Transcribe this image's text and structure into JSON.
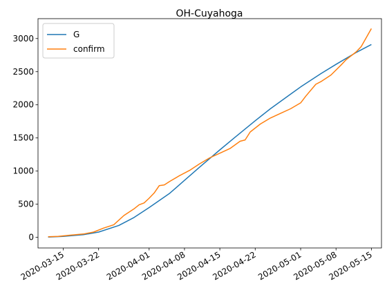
{
  "chart_data": {
    "type": "line",
    "title": "OH-Cuyahoga",
    "xlabel": "",
    "ylabel": "",
    "x_axis": "date",
    "xlim": [
      "2020-03-10",
      "2020-05-17"
    ],
    "ylim": [
      -160,
      3300
    ],
    "x_ticks": [
      "2020-03-15",
      "2020-03-22",
      "2020-04-01",
      "2020-04-08",
      "2020-04-15",
      "2020-04-22",
      "2020-05-01",
      "2020-05-08",
      "2020-05-15"
    ],
    "y_ticks": [
      0,
      500,
      1000,
      1500,
      2000,
      2500,
      3000
    ],
    "grid": false,
    "legend": {
      "placement": "top-left"
    },
    "series": [
      {
        "name": "G",
        "color": "#1f77b4",
        "x": [
          "2020-03-12",
          "2020-03-15",
          "2020-03-19",
          "2020-03-22",
          "2020-03-26",
          "2020-03-29",
          "2020-04-01",
          "2020-04-05",
          "2020-04-08",
          "2020-04-11",
          "2020-04-15",
          "2020-04-18",
          "2020-04-22",
          "2020-04-25",
          "2020-04-29",
          "2020-05-01",
          "2020-05-05",
          "2020-05-08",
          "2020-05-12",
          "2020-05-15"
        ],
        "y": [
          5,
          15,
          40,
          80,
          180,
          300,
          450,
          660,
          860,
          1060,
          1320,
          1510,
          1760,
          1940,
          2160,
          2270,
          2470,
          2610,
          2790,
          2910
        ]
      },
      {
        "name": "confirm",
        "color": "#ff7f0e",
        "x": [
          "2020-03-12",
          "2020-03-14",
          "2020-03-16",
          "2020-03-19",
          "2020-03-21",
          "2020-03-23",
          "2020-03-25",
          "2020-03-27",
          "2020-03-29",
          "2020-03-30",
          "2020-03-31",
          "2020-04-01",
          "2020-04-02",
          "2020-04-03",
          "2020-04-04",
          "2020-04-05",
          "2020-04-07",
          "2020-04-09",
          "2020-04-11",
          "2020-04-13",
          "2020-04-15",
          "2020-04-17",
          "2020-04-19",
          "2020-04-20",
          "2020-04-21",
          "2020-04-23",
          "2020-04-25",
          "2020-04-27",
          "2020-04-29",
          "2020-05-01",
          "2020-05-02",
          "2020-05-04",
          "2020-05-05",
          "2020-05-07",
          "2020-05-09",
          "2020-05-10",
          "2020-05-12",
          "2020-05-13",
          "2020-05-15"
        ],
        "y": [
          10,
          15,
          30,
          50,
          80,
          140,
          190,
          330,
          430,
          490,
          520,
          590,
          670,
          780,
          790,
          840,
          930,
          1010,
          1110,
          1200,
          1270,
          1340,
          1450,
          1470,
          1590,
          1710,
          1800,
          1870,
          1940,
          2030,
          2130,
          2310,
          2350,
          2450,
          2600,
          2680,
          2800,
          2880,
          3150
        ]
      }
    ]
  }
}
